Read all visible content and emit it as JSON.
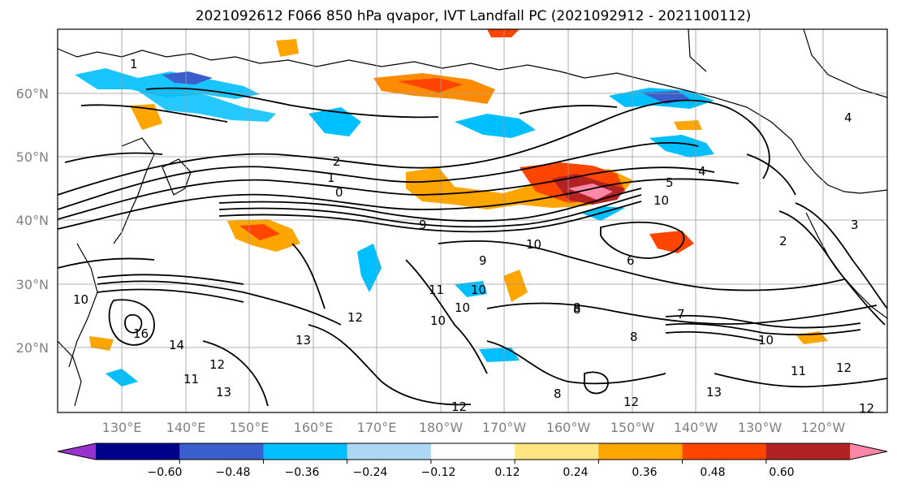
{
  "title": "2021092612 F066 850 hPa qvapor, IVT Landfall PC (2021092912 - 2021100112)",
  "map": {
    "lat_labels": [
      "60°N",
      "50°N",
      "40°N",
      "30°N",
      "20°N"
    ],
    "lon_labels": [
      "130°E",
      "140°E",
      "150°E",
      "160°E",
      "170°E",
      "180°W",
      "170°W",
      "160°W",
      "150°W",
      "140°W",
      "130°W",
      "120°W"
    ],
    "contour_labels": [
      "1",
      "2",
      "1",
      "0",
      "4",
      "5",
      "2",
      "6",
      "10",
      "10",
      "9",
      "10",
      "11",
      "10",
      "10",
      "12",
      "13",
      "14",
      "16",
      "11",
      "12",
      "13",
      "10",
      "12",
      "9",
      "8",
      "8",
      "7",
      "10",
      "11",
      "12",
      "13",
      "12",
      "12",
      "8",
      "8",
      "4",
      "3"
    ]
  },
  "colorbar": {
    "tick_labels": [
      "−0.60",
      "−0.48",
      "−0.36",
      "−0.24",
      "−0.12",
      "0.12",
      "0.24",
      "0.36",
      "0.48",
      "0.60"
    ],
    "colors": [
      "#9932cc",
      "#00008b",
      "#3a5fcd",
      "#00bfff",
      "#add8f6",
      "#ffffff",
      "#ffe680",
      "#ffa500",
      "#ff4500",
      "#b22222",
      "#ff88aa"
    ]
  }
}
